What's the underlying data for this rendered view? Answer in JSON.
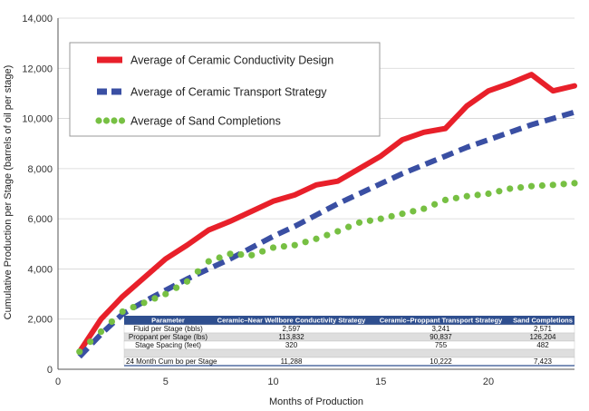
{
  "chart_data": {
    "type": "line",
    "title": "",
    "xlabel": "Months of Production",
    "ylabel": "Cumulative Production per Stage (barrels of oil per stage)",
    "xlim": [
      0,
      24
    ],
    "ylim": [
      0,
      14000
    ],
    "x_ticks": [
      0,
      5,
      10,
      15,
      20
    ],
    "y_ticks": [
      0,
      2000,
      4000,
      6000,
      8000,
      10000,
      12000,
      14000
    ],
    "y_tick_labels": [
      "0",
      "2,000",
      "4,000",
      "6,000",
      "8,000",
      "10,000",
      "12,000",
      "14,000"
    ],
    "legend_position": "top-left",
    "series": [
      {
        "name": "Average of Ceramic Conductivity Design",
        "color": "#e8202a",
        "style": "solid",
        "x": [
          1,
          2,
          3,
          4,
          5,
          6,
          7,
          8,
          9,
          10,
          11,
          12,
          13,
          14,
          15,
          16,
          17,
          18,
          19,
          20,
          21,
          22,
          23,
          24
        ],
        "values": [
          700,
          2000,
          2900,
          3650,
          4400,
          4950,
          5550,
          5900,
          6300,
          6700,
          6950,
          7350,
          7500,
          8000,
          8500,
          9150,
          9450,
          9600,
          10500,
          11100,
          11400,
          11750,
          11100,
          11300
        ]
      },
      {
        "name": "Average of Ceramic Transport Strategy",
        "color": "#3a4fa3",
        "style": "dashed",
        "x": [
          1,
          2,
          3,
          4,
          5,
          6,
          7,
          8,
          9,
          10,
          11,
          12,
          13,
          14,
          15,
          16,
          17,
          18,
          19,
          20,
          21,
          22,
          23,
          24
        ],
        "values": [
          500,
          1400,
          2200,
          2700,
          3150,
          3600,
          4000,
          4400,
          4850,
          5300,
          5700,
          6150,
          6600,
          7000,
          7400,
          7800,
          8150,
          8500,
          8850,
          9150,
          9450,
          9750,
          10000,
          10250
        ]
      },
      {
        "name": "Average of Sand Completions",
        "color": "#77c043",
        "style": "dotted",
        "x": [
          1,
          2,
          3,
          4,
          5,
          6,
          7,
          8,
          9,
          10,
          11,
          12,
          13,
          14,
          15,
          16,
          17,
          18,
          19,
          20,
          21,
          22,
          23,
          24
        ],
        "values": [
          700,
          1500,
          2300,
          2650,
          3000,
          3500,
          4300,
          4600,
          4550,
          4850,
          4950,
          5200,
          5500,
          5850,
          6000,
          6200,
          6400,
          6750,
          6900,
          7000,
          7200,
          7300,
          7350,
          7420
        ]
      }
    ],
    "table": {
      "headers": [
        "Parameter",
        "Ceramic–Near Wellbore Conductivity Strategy",
        "Ceramic–Proppant Transport Strategy",
        "Sand Completions"
      ],
      "rows": [
        [
          "Fluid per Stage (bbls)",
          "2,597",
          "3,241",
          "2,571"
        ],
        [
          "Proppant per Stage (lbs)",
          "113,832",
          "90,837",
          "126,204"
        ],
        [
          "Stage Spacing (feet)",
          "320",
          "755",
          "482"
        ],
        [
          "",
          "",
          "",
          ""
        ],
        [
          "24 Month Cum bo per Stage",
          "11,288",
          "10,222",
          "7,423"
        ]
      ]
    }
  }
}
